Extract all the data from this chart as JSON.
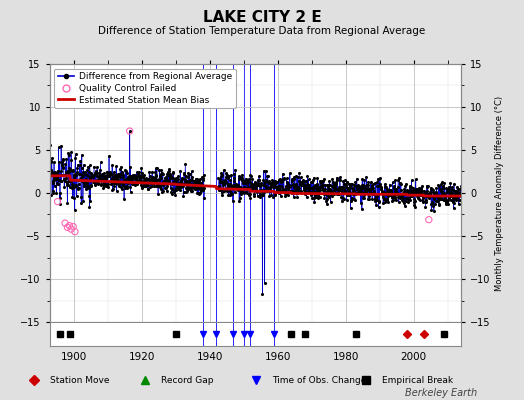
{
  "title": "LAKE CITY 2 E",
  "subtitle": "Difference of Station Temperature Data from Regional Average",
  "ylabel": "Monthly Temperature Anomaly Difference (°C)",
  "xlim": [
    1893,
    2014
  ],
  "ylim": [
    -15,
    15
  ],
  "yticks": [
    -15,
    -10,
    -5,
    0,
    5,
    10,
    15
  ],
  "xticks": [
    1900,
    1920,
    1940,
    1960,
    1980,
    2000
  ],
  "background_color": "#e0e0e0",
  "plot_bg_color": "#ffffff",
  "grid_color": "#c0c0c0",
  "watermark": "Berkeley Earth",
  "station_moves": [
    1998,
    2003
  ],
  "record_gaps": [],
  "obs_changes": [
    1938,
    1942,
    1947,
    1950,
    1952,
    1959
  ],
  "empirical_breaks": [
    1896,
    1899,
    1930,
    1964,
    1968,
    1983,
    2009
  ],
  "marker_y": -12.5,
  "qc_failed_x": [
    1895.3,
    1897.5,
    1898.2,
    1898.8,
    1899.3,
    1899.9,
    1900.4,
    1916.5,
    2004.5
  ],
  "qc_failed_y": [
    -1.0,
    -3.5,
    -4.0,
    -3.8,
    -4.2,
    -3.9,
    -4.5,
    7.2,
    -3.1
  ],
  "blue_line_color": "#0000cc",
  "red_line_color": "#cc0000",
  "dot_color": "#000000",
  "qc_color": "#ff69b4",
  "obs_change_color": "#0000ff",
  "station_move_color": "#cc0000",
  "empirical_break_color": "#000000",
  "record_gap_color": "#008800",
  "seed": 42,
  "years_start": 1893,
  "years_end": 2014
}
